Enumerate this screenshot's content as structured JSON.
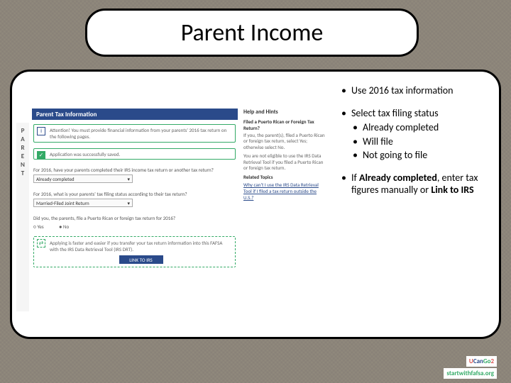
{
  "title": "Parent Income",
  "background": {
    "pattern_colors": [
      "#8a7a5a",
      "#a09470"
    ],
    "pattern": "crosshatch"
  },
  "pill_border_color": "#000000",
  "pill_bg_color": "#ffffff",
  "pill_border_radius": 28,
  "screenshot": {
    "sidebar_letters": "PARENT",
    "header_bg": "#2a4a8a",
    "header_text": "Parent Tax Information",
    "alert1_icon": "i",
    "alert1_text": "Attention! You must provide financial information from your parents' 2016 tax return on the following pages.",
    "alert2_icon": "✓",
    "alert2_text": "Application was successfully saved.",
    "q1_label": "For 2016, have your parents completed their IRS income tax return or another tax return?",
    "q1_value": "Already completed",
    "q2_label": "For 2016, what is your parents' tax filing status according to their tax return?",
    "q2_value": "Married-Filed Joint Return",
    "q3_label": "Did you, the parents, file a Puerto Rican or foreign tax return for 2016?",
    "q3_yes": "Yes",
    "q3_no": "No",
    "q3_selected": "No",
    "hint_box_icon": "⇄",
    "hint_box_text": "Applying is faster and easier if you transfer your tax return information into this FAFSA with the IRS Data Retrieval Tool (IRS DRT).",
    "link_button": "LINK TO IRS",
    "help": {
      "title": "Help and Hints",
      "subtitle": "Filed a Puerto Rican or Foreign Tax Return?",
      "para1": "If you, the parent(s), filed a Puerto Rican or foreign tax return, select Yes; otherwise select No.",
      "para2": "You are not eligible to use the IRS Data Retrieval Tool if you filed a Puerto Rican or foreign tax return.",
      "related_label": "Related Topics",
      "related_link1": "Why can't I use the IRS Data Retrieval Tool if I filed a tax return outside the U.S.?"
    }
  },
  "bullets": {
    "b1": "Use 2016 tax information",
    "b2": "Select tax filing status",
    "b2a": "Already completed",
    "b2b": "Will file",
    "b2c": "Not going to file",
    "b3_part1": "If Already completed, enter tax figures manually or ",
    "b3_part2": "Link to IRS"
  },
  "logos": {
    "ucango2": "UCanGo2",
    "startwithfafsa": "startwithfafsa.org"
  }
}
